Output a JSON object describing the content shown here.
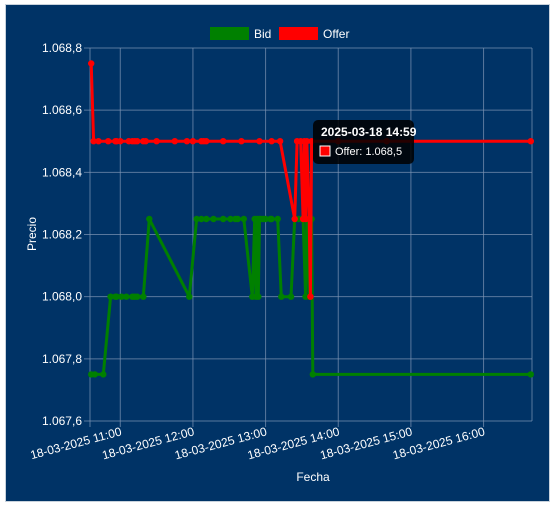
{
  "chart_data": {
    "type": "line",
    "xlabel": "Fecha",
    "ylabel": "Precio",
    "ylim": [
      1067.6,
      1068.8
    ],
    "y_ticks": [
      "1.067,6",
      "1.067,8",
      "1.068,0",
      "1.068,2",
      "1.068,4",
      "1.068,6",
      "1.068,8"
    ],
    "x_ticks": [
      "18-03-2025 11:00",
      "18-03-2025 12:00",
      "18-03-2025 13:00",
      "18-03-2025 14:00",
      "18-03-2025 15:00",
      "18-03-2025 16:00"
    ],
    "x_range": [
      "2025-03-18 10:35",
      "2025-03-18 16:40"
    ],
    "grid": true,
    "legend_placement": "top-center",
    "colors": {
      "background": "#003366",
      "grid": "#7f96b5",
      "bid": "#008000",
      "offer": "#ff0000",
      "text": "#ffffff"
    },
    "series": [
      {
        "name": "Bid",
        "color": "#008000",
        "points": [
          [
            "10:36",
            1067.75
          ],
          [
            "10:39",
            1067.75
          ],
          [
            "10:46",
            1067.75
          ],
          [
            "10:52",
            1068.0
          ],
          [
            "10:56",
            1068.0
          ],
          [
            "10:57",
            1068.0
          ],
          [
            "11:01",
            1068.0
          ],
          [
            "11:05",
            1068.0
          ],
          [
            "11:10",
            1068.0
          ],
          [
            "11:12",
            1068.0
          ],
          [
            "11:14",
            1068.0
          ],
          [
            "11:19",
            1068.0
          ],
          [
            "11:24",
            1068.25
          ],
          [
            "11:57",
            1068.0
          ],
          [
            "12:03",
            1068.25
          ],
          [
            "12:07",
            1068.25
          ],
          [
            "12:11",
            1068.25
          ],
          [
            "12:17",
            1068.25
          ],
          [
            "12:25",
            1068.25
          ],
          [
            "12:31",
            1068.25
          ],
          [
            "12:35",
            1068.25
          ],
          [
            "12:37",
            1068.25
          ],
          [
            "12:42",
            1068.25
          ],
          [
            "12:49",
            1068.0
          ],
          [
            "12:51",
            1068.25
          ],
          [
            "12:52",
            1068.0
          ],
          [
            "12:53",
            1068.25
          ],
          [
            "12:54",
            1068.0
          ],
          [
            "12:55",
            1068.25
          ],
          [
            "12:56",
            1068.25
          ],
          [
            "12:58",
            1068.25
          ],
          [
            "13:00",
            1068.25
          ],
          [
            "13:04",
            1068.25
          ],
          [
            "13:05",
            1068.25
          ],
          [
            "13:10",
            1068.25
          ],
          [
            "13:13",
            1068.0
          ],
          [
            "13:21",
            1068.0
          ],
          [
            "13:24",
            1068.25
          ],
          [
            "13:27",
            1068.25
          ],
          [
            "13:29",
            1068.25
          ],
          [
            "13:31",
            1068.25
          ],
          [
            "13:33",
            1068.0
          ],
          [
            "13:34",
            1068.25
          ],
          [
            "13:35",
            1068.25
          ],
          [
            "13:36",
            1068.0
          ],
          [
            "13:37",
            1068.0
          ],
          [
            "13:38",
            1068.25
          ],
          [
            "13:39",
            1067.75
          ],
          [
            "16:39",
            1067.75
          ]
        ]
      },
      {
        "name": "Offer",
        "color": "#ff0000",
        "points": [
          [
            "10:36",
            1068.75
          ],
          [
            "10:38",
            1068.5
          ],
          [
            "10:42",
            1068.5
          ],
          [
            "10:50",
            1068.5
          ],
          [
            "10:56",
            1068.5
          ],
          [
            "10:57",
            1068.5
          ],
          [
            "11:00",
            1068.5
          ],
          [
            "11:07",
            1068.5
          ],
          [
            "11:10",
            1068.5
          ],
          [
            "11:12",
            1068.5
          ],
          [
            "11:14",
            1068.5
          ],
          [
            "11:19",
            1068.5
          ],
          [
            "11:21",
            1068.5
          ],
          [
            "11:30",
            1068.5
          ],
          [
            "11:45",
            1068.5
          ],
          [
            "11:55",
            1068.5
          ],
          [
            "12:00",
            1068.5
          ],
          [
            "12:07",
            1068.5
          ],
          [
            "12:09",
            1068.5
          ],
          [
            "12:11",
            1068.5
          ],
          [
            "12:25",
            1068.5
          ],
          [
            "12:40",
            1068.5
          ],
          [
            "12:55",
            1068.5
          ],
          [
            "13:05",
            1068.5
          ],
          [
            "13:12",
            1068.5
          ],
          [
            "13:24",
            1068.25
          ],
          [
            "13:26",
            1068.5
          ],
          [
            "13:29",
            1068.5
          ],
          [
            "13:31",
            1068.25
          ],
          [
            "13:32",
            1068.5
          ],
          [
            "13:33",
            1068.25
          ],
          [
            "13:34",
            1068.5
          ],
          [
            "13:36",
            1068.25
          ],
          [
            "13:37",
            1068.0
          ],
          [
            "13:38",
            1068.5
          ],
          [
            "14:00",
            1068.5
          ],
          [
            "14:40",
            1068.5
          ],
          [
            "16:39",
            1068.5
          ]
        ]
      }
    ],
    "tooltip": {
      "title": "2025-03-18 14:59",
      "label": "Offer: 1.068,5",
      "series": "Offer"
    }
  }
}
